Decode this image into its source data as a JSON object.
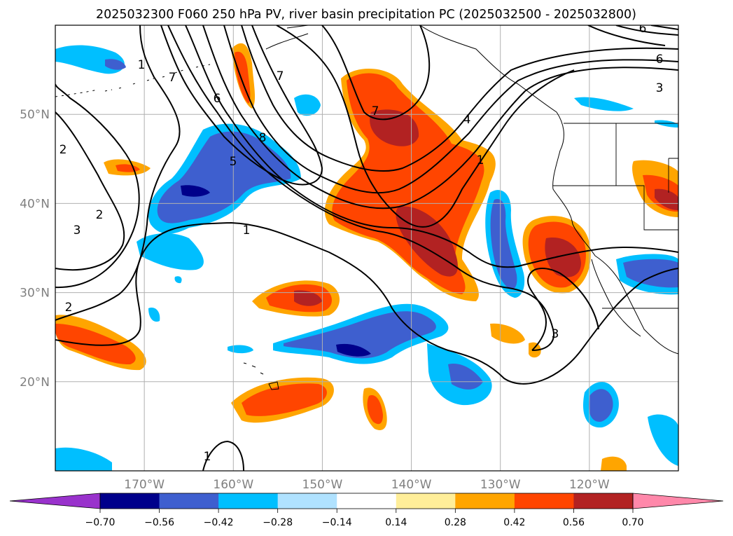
{
  "title": "2025032300 F060 250 hPa PV, river basin precipitation PC (2025032500 - 2025032800)",
  "map": {
    "lon_range": [
      -180,
      -110
    ],
    "lat_range": [
      10,
      60
    ],
    "lat_ticks": [
      "50°N",
      "40°N",
      "30°N",
      "20°N"
    ],
    "lon_ticks": [
      "170°W",
      "160°W",
      "150°W",
      "140°W",
      "130°W",
      "120°W"
    ],
    "grid": true,
    "pv_contour_labels": [
      "1",
      "7",
      "6",
      "7",
      "8",
      "5",
      "2",
      "2",
      "3",
      "1",
      "2",
      "7",
      "4",
      "1",
      "6",
      "3",
      "3",
      "1",
      "6"
    ]
  },
  "colorbar": {
    "tick_labels": [
      "−0.70",
      "−0.56",
      "−0.42",
      "−0.28",
      "−0.14",
      "0.14",
      "0.28",
      "0.42",
      "0.56",
      "0.70"
    ],
    "colors": [
      "#9932cc",
      "#00008b",
      "#3e5fcf",
      "#00bfff",
      "#b0e2ff",
      "#ffffff",
      "#ffee99",
      "#ffa500",
      "#ff4500",
      "#b22222",
      "#ff88aa"
    ],
    "extend": "both"
  },
  "colors": {
    "land_line": "#000000",
    "grid": "#b0b0b0"
  }
}
